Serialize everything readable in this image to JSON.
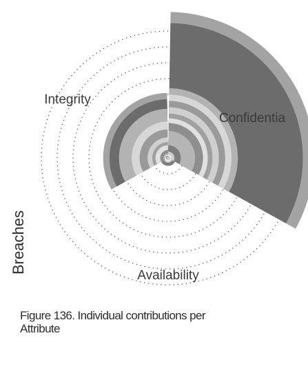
{
  "chart_data": {
    "type": "polar_area",
    "categories": [
      "Confidentiality",
      "Availability",
      "Integrity"
    ],
    "category_labels_shown": [
      "Confidentia",
      "Availability",
      "Integrity"
    ],
    "ylabel": "Breaches",
    "rings": 8,
    "grid": "dotted-circles",
    "series": [
      {
        "values": [
          9.2,
          0.4,
          4.1
        ],
        "color": "#a3a3a3"
      },
      {
        "values": [
          8.5,
          0.3,
          3.7
        ],
        "color": "#6c6c6c"
      },
      {
        "values": [
          4.4,
          0.2,
          3.1
        ],
        "color": "#b3b3b3"
      },
      {
        "values": [
          4.0,
          0.1,
          2.3
        ],
        "color": "#d7d7d7"
      },
      {
        "values": [
          3.6,
          0.1,
          1.8
        ],
        "color": "#9a9a9a"
      },
      {
        "values": [
          3.2,
          0.1,
          1.3
        ],
        "color": "#cfcfcf"
      },
      {
        "values": [
          2.8,
          0.1,
          1.0
        ],
        "color": "#a0a0a0"
      },
      {
        "values": [
          2.5,
          0.1,
          0.8
        ],
        "color": "#e0e0e0"
      },
      {
        "values": [
          2.2,
          0.2,
          0.5
        ],
        "color": "#8e8e8e"
      },
      {
        "values": [
          1.7,
          0.3,
          0.3
        ],
        "color": "#b5b5b5"
      },
      {
        "values": [
          0.8,
          0.5,
          0.2
        ],
        "color": "#7d7d7d"
      },
      {
        "values": [
          0.4,
          0.3,
          0.1
        ],
        "color": "#cccccc"
      }
    ]
  },
  "caption": {
    "line1": "Figure 136. Individual contributions per",
    "line2": "Attribute"
  }
}
